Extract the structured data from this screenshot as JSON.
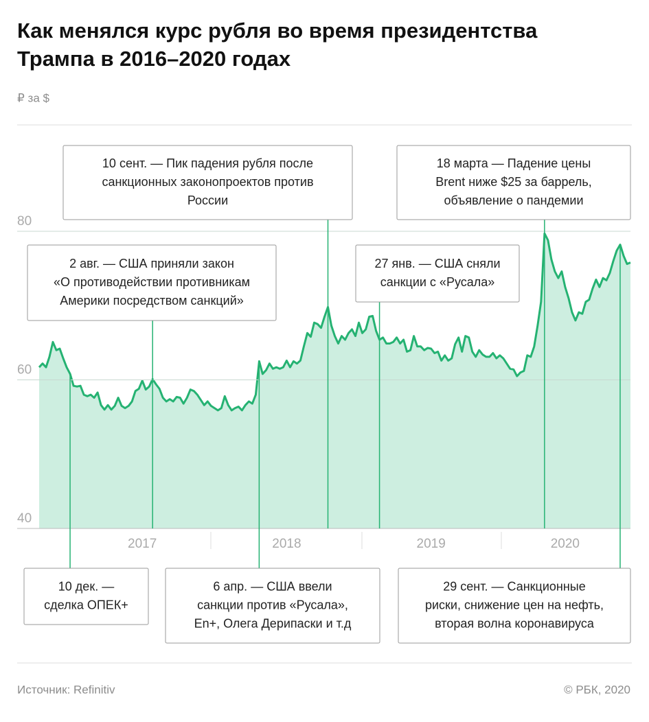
{
  "chart_data": {
    "type": "area",
    "title_lines": [
      "Как менялся курс рубля во время президентства",
      "Трампа в 2016–2020 годах"
    ],
    "unit": "₽ за $",
    "source": "Источник:  Refinitiv",
    "credit": "© РБК, 2020",
    "color": "#25b272",
    "fill_color": "#cdeee0",
    "ylim": [
      40,
      80
    ],
    "yticks": [
      40,
      60,
      80
    ],
    "grid": true,
    "categories": [
      null,
      null,
      null,
      null,
      null,
      null,
      null,
      null,
      null,
      null,
      null,
      null,
      null,
      null,
      null,
      null,
      null,
      null,
      null,
      null,
      null,
      null,
      null,
      null,
      null,
      null,
      null,
      null,
      null,
      null,
      "2017",
      null,
      null,
      null,
      null,
      null,
      null,
      null,
      null,
      null,
      null,
      null,
      null,
      null,
      null,
      null,
      null,
      null,
      null,
      null,
      null,
      null,
      null,
      null,
      null,
      null,
      null,
      null,
      null,
      null,
      null,
      null,
      null,
      null,
      null,
      null,
      null,
      null,
      null,
      null,
      null,
      null,
      "2018",
      null,
      null,
      null,
      null,
      null,
      null,
      null,
      null,
      null,
      null,
      null,
      null,
      null,
      null,
      null,
      null,
      null,
      null,
      null,
      null,
      null,
      null,
      null,
      null,
      null,
      null,
      null,
      null,
      null,
      null,
      null,
      null,
      null,
      null,
      null,
      null,
      null,
      null,
      null,
      null,
      null,
      "2019",
      null,
      null,
      null,
      null,
      null,
      null,
      null,
      null,
      null,
      null,
      null,
      null,
      null,
      null,
      null,
      null,
      null,
      null,
      null,
      null,
      null,
      null,
      null,
      null,
      null,
      null,
      null,
      null,
      null,
      null,
      null,
      null,
      null,
      null,
      null,
      null,
      null,
      null,
      "2020",
      null,
      null,
      null,
      null,
      null,
      null,
      null,
      null,
      null,
      null,
      null,
      null,
      null,
      null,
      null,
      null,
      null,
      null,
      null
    ],
    "values": [
      61.7,
      62.2,
      61.7,
      63.1,
      65.1,
      64.0,
      64.2,
      62.9,
      61.7,
      60.8,
      59.2,
      59.1,
      59.2,
      58.0,
      57.8,
      58.0,
      57.6,
      58.3,
      56.6,
      56.0,
      56.6,
      56.0,
      56.5,
      57.6,
      56.5,
      56.2,
      56.5,
      57.1,
      58.5,
      58.8,
      59.9,
      58.7,
      59.1,
      60.1,
      59.4,
      58.8,
      57.6,
      57.1,
      57.4,
      57.1,
      57.7,
      57.6,
      56.8,
      57.6,
      58.7,
      58.5,
      58.0,
      57.3,
      56.6,
      57.1,
      56.5,
      56.2,
      55.9,
      56.2,
      57.8,
      56.6,
      55.9,
      56.2,
      56.4,
      55.9,
      56.6,
      57.1,
      56.8,
      58.0,
      62.5,
      60.8,
      61.3,
      62.2,
      61.5,
      61.7,
      61.5,
      61.7,
      62.6,
      61.7,
      62.5,
      62.2,
      62.6,
      64.5,
      66.3,
      65.8,
      67.7,
      67.5,
      67.0,
      68.5,
      69.8,
      67.3,
      65.9,
      64.9,
      65.9,
      65.4,
      66.3,
      66.8,
      65.9,
      67.7,
      66.3,
      66.8,
      68.5,
      68.6,
      66.6,
      65.4,
      65.7,
      64.9,
      64.9,
      65.1,
      65.7,
      64.9,
      65.4,
      63.8,
      64.0,
      65.9,
      64.5,
      64.5,
      64.0,
      64.3,
      64.2,
      63.6,
      63.8,
      62.6,
      63.3,
      62.6,
      62.9,
      64.8,
      65.7,
      63.8,
      65.9,
      65.7,
      63.8,
      63.1,
      64.0,
      63.4,
      63.1,
      63.1,
      63.6,
      62.9,
      63.3,
      62.9,
      62.2,
      61.5,
      61.4,
      60.5,
      61.0,
      61.2,
      63.3,
      63.1,
      64.5,
      67.3,
      70.5,
      79.7,
      78.8,
      76.2,
      74.6,
      73.7,
      74.6,
      72.5,
      71.0,
      69.1,
      68.0,
      69.1,
      68.9,
      70.5,
      70.8,
      72.3,
      73.5,
      72.5,
      73.7,
      73.4,
      74.4,
      76.0,
      77.4,
      78.2,
      76.7,
      75.6,
      75.8
    ],
    "annotations": [
      {
        "point": 9,
        "lines": [
          "10 дек. —",
          "сделка ОПЕК+"
        ]
      },
      {
        "point": 33,
        "lines": [
          "2 авг. — США приняли закон",
          "«О противодействии противникам",
          "Америки посредством санкций»"
        ]
      },
      {
        "point": 64,
        "lines": [
          "6 апр. —  США ввели",
          "санкции против «Русала»,",
          "En+, Олега Дерипаски и т.д"
        ]
      },
      {
        "point": 84,
        "lines": [
          "10 сент. — Пик падения рубля после",
          "санкционных законопроектов против",
          "России"
        ]
      },
      {
        "point": 99,
        "lines": [
          "27 янв. — США сняли",
          "санкции с «Русала»"
        ]
      },
      {
        "point": 147,
        "lines": [
          "18 марта — Падение цены",
          "Brent ниже $25 за баррель,",
          "объявление о пандемии"
        ]
      },
      {
        "point": 169,
        "lines": [
          "29 сент. — Санкционные",
          "риски, снижение цен на нефть,",
          "вторая волна коронавируса"
        ]
      }
    ]
  }
}
